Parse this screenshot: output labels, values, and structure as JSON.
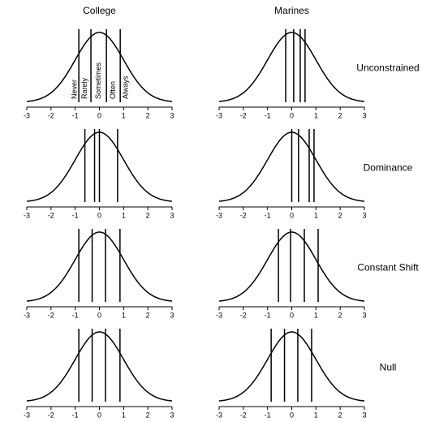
{
  "columns": [
    "College",
    "Marines"
  ],
  "rows": [
    "Unconstrained",
    "Dominance",
    "Constant Shift",
    "Null"
  ],
  "response_labels": [
    "Never",
    "Rarely",
    "Sometimes",
    "Often",
    "Always"
  ],
  "chart_data": [
    {
      "type": "density",
      "mean": 0,
      "sd": 1,
      "thresholds": [
        -0.85,
        -0.35,
        0.29,
        0.86
      ],
      "xlim": [
        -3,
        3
      ],
      "xticks": [
        -3,
        -2,
        -1,
        0,
        1,
        2,
        3
      ]
    },
    {
      "type": "density",
      "mean": 0,
      "sd": 1,
      "thresholds": [
        -0.25,
        0.08,
        0.35,
        0.55
      ],
      "xlim": [
        -3,
        3
      ],
      "xticks": [
        -3,
        -2,
        -1,
        0,
        1,
        2,
        3
      ]
    },
    {
      "type": "density",
      "mean": 0,
      "sd": 1,
      "thresholds": [
        -0.6,
        -0.2,
        0,
        0.75
      ],
      "xlim": [
        -3,
        3
      ],
      "xticks": [
        -3,
        -2,
        -1,
        0,
        1,
        2,
        3
      ]
    },
    {
      "type": "density",
      "mean": 0,
      "sd": 1,
      "thresholds": [
        0,
        0.28,
        0.72,
        0.92
      ],
      "xlim": [
        -3,
        3
      ],
      "xticks": [
        -3,
        -2,
        -1,
        0,
        1,
        2,
        3
      ]
    },
    {
      "type": "density",
      "mean": 0,
      "sd": 1,
      "thresholds": [
        -0.85,
        -0.3,
        0.25,
        0.85
      ],
      "xlim": [
        -3,
        3
      ],
      "xticks": [
        -3,
        -2,
        -1,
        0,
        1,
        2,
        3
      ]
    },
    {
      "type": "density",
      "mean": 0,
      "sd": 1,
      "thresholds": [
        -0.55,
        -0.05,
        0.52,
        1.09
      ],
      "xlim": [
        -3,
        3
      ],
      "xticks": [
        -3,
        -2,
        -1,
        0,
        1,
        2,
        3
      ]
    },
    {
      "type": "density",
      "mean": 0,
      "sd": 1,
      "thresholds": [
        -0.85,
        -0.3,
        0.25,
        0.85
      ],
      "xlim": [
        -3,
        3
      ],
      "xticks": [
        -3,
        -2,
        -1,
        0,
        1,
        2,
        3
      ]
    },
    {
      "type": "density",
      "mean": 0,
      "sd": 1,
      "thresholds": [
        -0.85,
        -0.3,
        0.25,
        0.82
      ],
      "xlim": [
        -3,
        3
      ],
      "xticks": [
        -3,
        -2,
        -1,
        0,
        1,
        2,
        3
      ]
    }
  ]
}
